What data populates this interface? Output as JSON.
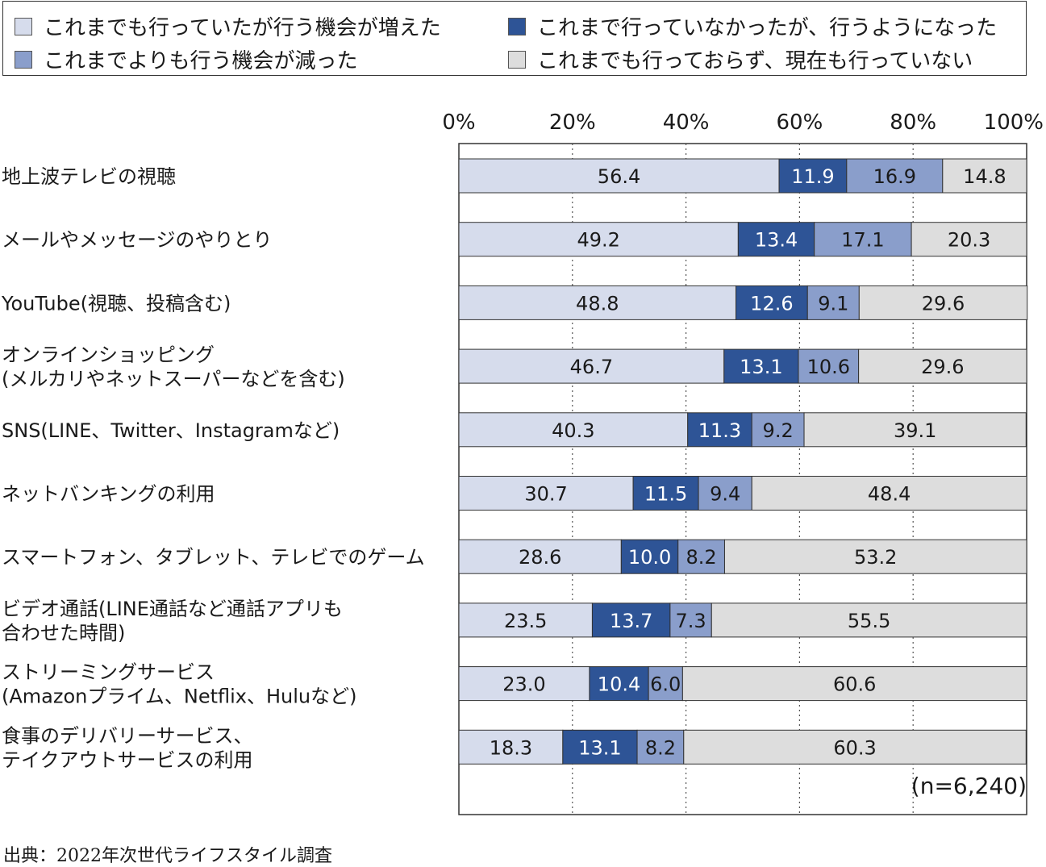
{
  "chart_data": {
    "type": "bar",
    "orientation": "horizontal",
    "stacked": true,
    "xlim": [
      0,
      100
    ],
    "x_ticks": [
      "0%",
      "20%",
      "40%",
      "60%",
      "80%",
      "100%"
    ],
    "legend_position": "top",
    "grid": "dotted vertical",
    "categories": [
      [
        "地上波テレビの視聴"
      ],
      [
        "メールやメッセージのやりとり"
      ],
      [
        "YouTube(視聴、投稿含む)"
      ],
      [
        "オンラインショッピング",
        "(メルカリやネットスーパーなどを含む)"
      ],
      [
        "SNS(LINE、Twitter、Instagramなど)"
      ],
      [
        "ネットバンキングの利用"
      ],
      [
        "スマートフォン、タブレット、テレビでのゲーム"
      ],
      [
        "ビデオ通話(LINE通話など通話アプリも",
        "合わせた時間)"
      ],
      [
        "ストリーミングサービス",
        "(Amazonプライム、Netflix、Huluなど)"
      ],
      [
        "食事のデリバリーサービス、",
        "テイクアウトサービスの利用"
      ]
    ],
    "series": [
      {
        "name": "これまでも行っていたが行う機会が増えた",
        "color": "#d6dcec",
        "text_color": "#1a1a1a",
        "values": [
          56.4,
          49.2,
          48.8,
          46.7,
          40.3,
          30.7,
          28.6,
          23.5,
          23.0,
          18.3
        ]
      },
      {
        "name": "これまで行っていなかったが、行うようになった",
        "color": "#2e5496",
        "text_color": "#ffffff",
        "values": [
          11.9,
          13.4,
          12.6,
          13.1,
          11.3,
          11.5,
          10.0,
          13.7,
          10.4,
          13.1
        ]
      },
      {
        "name": "これまでよりも行う機会が減った",
        "color": "#8a9ecb",
        "text_color": "#1a1a1a",
        "values": [
          16.9,
          17.1,
          9.1,
          10.6,
          9.2,
          9.4,
          8.2,
          7.3,
          6.0,
          8.2
        ]
      },
      {
        "name": "これまでも行っておらず、現在も行っていない",
        "color": "#dddddd",
        "text_color": "#1a1a1a",
        "values": [
          14.8,
          20.3,
          29.6,
          29.6,
          39.1,
          48.4,
          53.2,
          55.5,
          60.6,
          60.3
        ]
      }
    ],
    "annotation": "(n=6,240)"
  },
  "source": "出典：2022年次世代ライフスタイル調査"
}
